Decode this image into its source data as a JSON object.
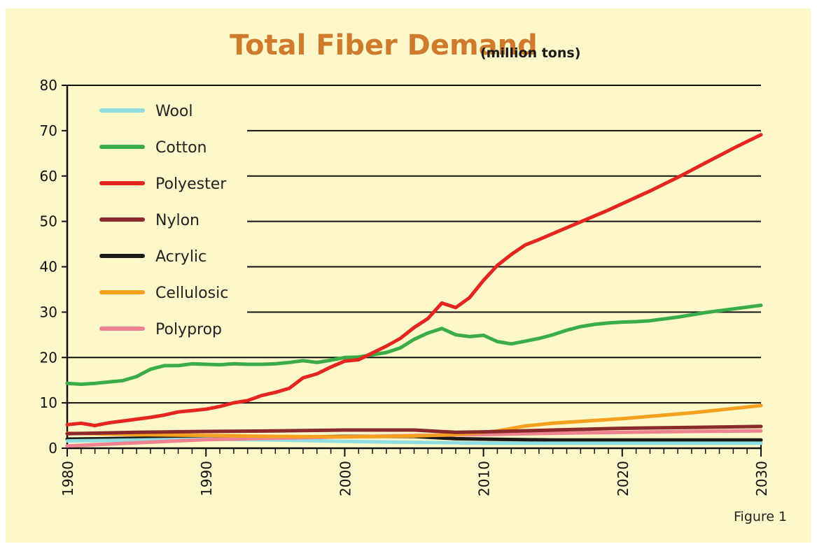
{
  "figure_label": "Figure 1",
  "chart_data": {
    "type": "line",
    "title": "Total Fiber Demand",
    "subtitle": "(million tons)",
    "xlabel": "",
    "ylabel": "",
    "xlim": [
      1980,
      2030
    ],
    "ylim": [
      0,
      80
    ],
    "x_ticks": [
      1980,
      1990,
      2000,
      2010,
      2020,
      2030
    ],
    "y_ticks": [
      0,
      10,
      20,
      30,
      40,
      50,
      60,
      70,
      80
    ],
    "grid": "horizontal",
    "legend_position": "top-left",
    "series": [
      {
        "name": "Wool",
        "color": "#8fdde0",
        "x": [
          1980,
          1985,
          1990,
          1995,
          2000,
          2005,
          2008,
          2010,
          2015,
          2020,
          2025,
          2030
        ],
        "values": [
          1.6,
          1.8,
          2.0,
          1.8,
          1.5,
          1.3,
          1.2,
          1.1,
          1.1,
          1.1,
          1.1,
          1.1
        ]
      },
      {
        "name": "Cotton",
        "color": "#3aad48",
        "x": [
          1980,
          1981,
          1982,
          1983,
          1984,
          1985,
          1986,
          1987,
          1988,
          1989,
          1990,
          1991,
          1992,
          1993,
          1994,
          1995,
          1996,
          1997,
          1998,
          1999,
          2000,
          2001,
          2002,
          2003,
          2004,
          2005,
          2006,
          2007,
          2008,
          2009,
          2010,
          2011,
          2012,
          2013,
          2014,
          2015,
          2016,
          2017,
          2018,
          2019,
          2020,
          2021,
          2022,
          2023,
          2024,
          2025,
          2026,
          2027,
          2028,
          2029,
          2030
        ],
        "values": [
          14.3,
          14.1,
          14.3,
          14.6,
          14.9,
          15.8,
          17.4,
          18.2,
          18.2,
          18.6,
          18.5,
          18.4,
          18.6,
          18.5,
          18.5,
          18.6,
          18.9,
          19.3,
          18.9,
          19.4,
          20.0,
          20.1,
          20.6,
          21.1,
          22.1,
          24.0,
          25.4,
          26.4,
          25.0,
          24.6,
          24.9,
          23.5,
          23.0,
          23.6,
          24.2,
          25.0,
          26.0,
          26.8,
          27.3,
          27.6,
          27.8,
          27.9,
          28.1,
          28.5,
          28.9,
          29.4,
          29.9,
          30.3,
          30.7,
          31.1,
          31.5
        ]
      },
      {
        "name": "Polyester",
        "color": "#e52620",
        "x": [
          1980,
          1981,
          1982,
          1983,
          1984,
          1985,
          1986,
          1987,
          1988,
          1989,
          1990,
          1991,
          1992,
          1993,
          1994,
          1995,
          1996,
          1997,
          1998,
          1999,
          2000,
          2001,
          2002,
          2003,
          2004,
          2005,
          2006,
          2007,
          2008,
          2009,
          2010,
          2011,
          2012,
          2013,
          2014,
          2015,
          2016,
          2017,
          2018,
          2019,
          2020,
          2021,
          2022,
          2023,
          2024,
          2025,
          2026,
          2027,
          2028,
          2029,
          2030
        ],
        "values": [
          5.2,
          5.5,
          5.0,
          5.6,
          6.0,
          6.4,
          6.8,
          7.3,
          8.0,
          8.3,
          8.6,
          9.2,
          10.0,
          10.5,
          11.6,
          12.3,
          13.2,
          15.5,
          16.4,
          17.9,
          19.2,
          19.5,
          21.0,
          22.5,
          24.2,
          26.6,
          28.6,
          32.0,
          31.0,
          33.2,
          37.0,
          40.3,
          42.7,
          44.8,
          46.0,
          47.3,
          48.6,
          49.9,
          51.2,
          52.5,
          53.9,
          55.3,
          56.7,
          58.2,
          59.7,
          61.3,
          62.9,
          64.5,
          66.1,
          67.6,
          69.1
        ]
      },
      {
        "name": "Nylon",
        "color": "#8b2a2c",
        "x": [
          1980,
          1985,
          1990,
          1995,
          2000,
          2005,
          2008,
          2010,
          2015,
          2020,
          2025,
          2030
        ],
        "values": [
          3.2,
          3.5,
          3.7,
          3.8,
          4.0,
          4.0,
          3.5,
          3.6,
          4.0,
          4.4,
          4.6,
          4.8
        ]
      },
      {
        "name": "Acrylic",
        "color": "#1b1a17",
        "x": [
          1980,
          1985,
          1990,
          1995,
          2000,
          2005,
          2008,
          2010,
          2015,
          2020,
          2025,
          2030
        ],
        "values": [
          2.0,
          2.2,
          2.4,
          2.4,
          2.6,
          2.6,
          2.1,
          2.0,
          1.8,
          1.8,
          1.8,
          1.8
        ]
      },
      {
        "name": "Cellulosic",
        "color": "#f5a01e",
        "x": [
          1980,
          1982,
          1985,
          1990,
          1995,
          2000,
          2005,
          2008,
          2010,
          2011,
          2013,
          2015,
          2020,
          2025,
          2030
        ],
        "values": [
          3.3,
          3.2,
          3.0,
          2.8,
          2.6,
          2.5,
          2.7,
          3.0,
          3.5,
          3.8,
          4.9,
          5.5,
          6.5,
          7.8,
          9.4
        ]
      },
      {
        "name": "Polyprop",
        "color": "#ef8291",
        "x": [
          1980,
          1985,
          1990,
          1995,
          2000,
          2005,
          2010,
          2015,
          2020,
          2025,
          2030
        ],
        "values": [
          0.5,
          1.2,
          1.9,
          2.2,
          2.5,
          2.8,
          3.0,
          3.3,
          3.5,
          3.7,
          3.8
        ]
      }
    ]
  }
}
